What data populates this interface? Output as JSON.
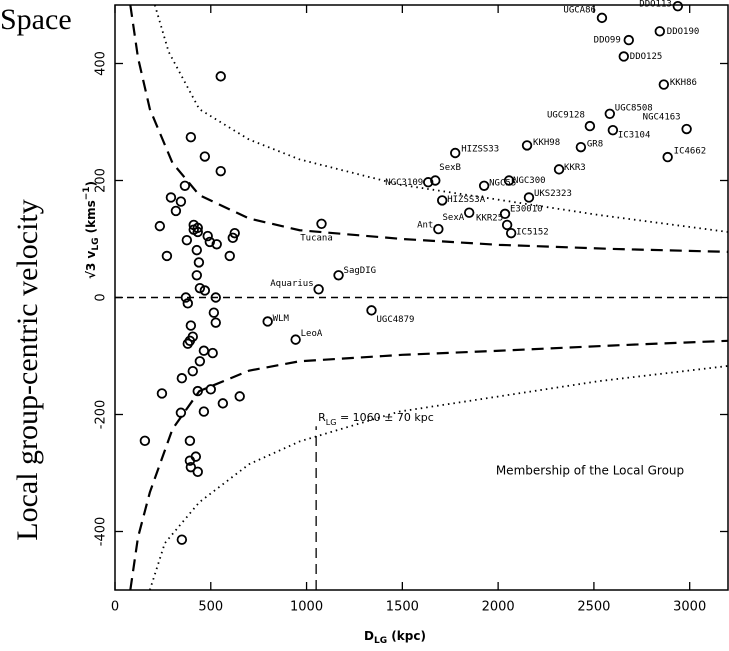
{
  "chart_data": {
    "type": "scatter",
    "title": "Space",
    "outer_ylabel": "Local group-centric velocity",
    "ylabel": {
      "text": "√3 v",
      "sub": "LG",
      "unit": " (kms",
      "sup": "−1",
      "end": ")"
    },
    "xlabel": {
      "text": "D",
      "sub": "LG",
      "unit": " (kpc)"
    },
    "xlim": [
      0,
      3200
    ],
    "ylim": [
      -500,
      500
    ],
    "xticks": [
      0,
      500,
      1000,
      1500,
      2000,
      2500,
      3000
    ],
    "yticks": [
      -400,
      -200,
      0,
      200,
      400
    ],
    "zero_line": 0,
    "annotations": {
      "radius": {
        "text": "R",
        "sub": "LG",
        "rest": " = 1060 ± 70 kpc",
        "x": 1050,
        "y": [
          -500,
          -220
        ]
      },
      "note": "Membership of the Local Group"
    },
    "series": [
      {
        "kind": "points",
        "color": "#000",
        "x": [
          2542,
          2938,
          2682,
          2844,
          2656,
          2865,
          2583,
          2479,
          2984,
          2599,
          2432,
          2885,
          1776,
          2151,
          1672,
          1635,
          1927,
          2057,
          2318,
          2161,
          1708,
          1849,
          2036,
          2047,
          1688,
          2068,
          1078,
          1063,
          1167,
          1339,
          797,
          943
        ],
        "y": [
          478,
          498,
          440,
          455,
          412,
          364,
          314,
          293,
          288,
          286,
          257,
          240,
          247,
          260,
          200,
          197,
          191,
          200,
          219,
          171,
          166,
          145,
          143,
          124,
          117,
          110,
          126,
          14,
          38,
          -22,
          -41,
          -72
        ],
        "labels": [
          "UGCA86",
          "DDO113",
          "DDO99",
          "DDO190",
          "DDO125",
          "KKH86",
          "UGC8508",
          "UGC9128",
          "NGC4163",
          "IC3104",
          "GR8",
          "IC4662",
          "HIZSS33",
          "KKH98",
          "SexB",
          "NGC3109",
          "NGC55",
          "NGC300",
          "KKR3",
          "UKS2323",
          "HIZSS3A",
          "SexA",
          "E30010",
          "KKR25",
          "Ant",
          "IC5152",
          "Tucana",
          "Aquarius",
          "SagDIG",
          "UGC4879",
          "WLM",
          "LeoA"
        ]
      },
      {
        "kind": "points",
        "color": "#000",
        "x": [
          552,
          396,
          469,
          552,
          365,
          292,
          344,
          234,
          318,
          271,
          411,
          375,
          432,
          411,
          432,
          427,
          484,
          495,
          531,
          599,
          625,
          615,
          438,
          427,
          443,
          469,
          526,
          516,
          370,
          380,
          396,
          406,
          380,
          391,
          526,
          510,
          464,
          443,
          406,
          349,
          432,
          500,
          344,
          464,
          563,
          651,
          245,
          156,
          391,
          391,
          432,
          396,
          422,
          349
        ],
        "y": [
          378,
          274,
          241,
          216,
          191,
          171,
          164,
          122,
          148,
          71,
          124,
          98,
          119,
          116,
          112,
          81,
          105,
          95,
          91,
          71,
          110,
          102,
          60,
          38,
          16,
          12,
          0,
          -26,
          0,
          -10,
          -48,
          -67,
          -79,
          -74,
          -43,
          -95,
          -91,
          -109,
          -126,
          -138,
          -160,
          -157,
          -197,
          -195,
          -181,
          -169,
          -164,
          -245,
          -245,
          -279,
          -298,
          -290,
          -272,
          -414
        ]
      },
      {
        "kind": "curve",
        "dash": "dashed",
        "color": "#000",
        "x": [
          80,
          120,
          182,
          300,
          440,
          700,
          964,
          1500,
          2005,
          2600,
          3200
        ],
        "y": [
          500,
          410,
          322,
          230,
          175,
          135,
          115,
          100,
          90,
          83,
          78
        ]
      },
      {
        "kind": "curve",
        "dash": "dashed",
        "color": "#000",
        "x": [
          80,
          120,
          182,
          300,
          440,
          700,
          964,
          1500,
          2005,
          2600,
          3200
        ],
        "y": [
          -500,
          -410,
          -333,
          -225,
          -160,
          -125,
          -109,
          -98,
          -91,
          -82,
          -74
        ]
      },
      {
        "kind": "curve",
        "dash": "dotted",
        "color": "#000",
        "x": [
          208,
          280,
          440,
          700,
          964,
          1484,
          2005,
          2526,
          3200
        ],
        "y": [
          500,
          420,
          322,
          270,
          236,
          193,
          167,
          141,
          112
        ]
      },
      {
        "kind": "curve",
        "dash": "dotted",
        "color": "#000",
        "x": [
          182,
          260,
          440,
          700,
          964,
          1484,
          2005,
          2526,
          3200
        ],
        "y": [
          -500,
          -420,
          -350,
          -285,
          -246,
          -195,
          -169,
          -143,
          -117
        ]
      }
    ]
  }
}
